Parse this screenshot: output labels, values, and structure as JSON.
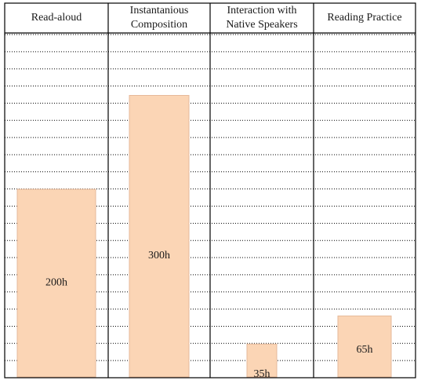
{
  "chart_data": {
    "type": "bar",
    "categories": [
      "Read-aloud",
      "Instantanious Composition",
      "Interaction with Native Speakers",
      "Reading Practice"
    ],
    "header_lines": [
      [
        "Read-aloud"
      ],
      [
        "Instantanious",
        "Composition"
      ],
      [
        "Interaction with",
        "Native Speakers"
      ],
      [
        "Reading Practice"
      ]
    ],
    "values": [
      200,
      300,
      35,
      65
    ],
    "data_labels": [
      "200h",
      "300h",
      "35h",
      "65h"
    ],
    "unit": "h",
    "ylim": [
      0,
      400
    ],
    "colors": {
      "bar_fill": "#FBD5B5",
      "bar_stroke": "#E6B99A",
      "grid": "#000000"
    }
  }
}
